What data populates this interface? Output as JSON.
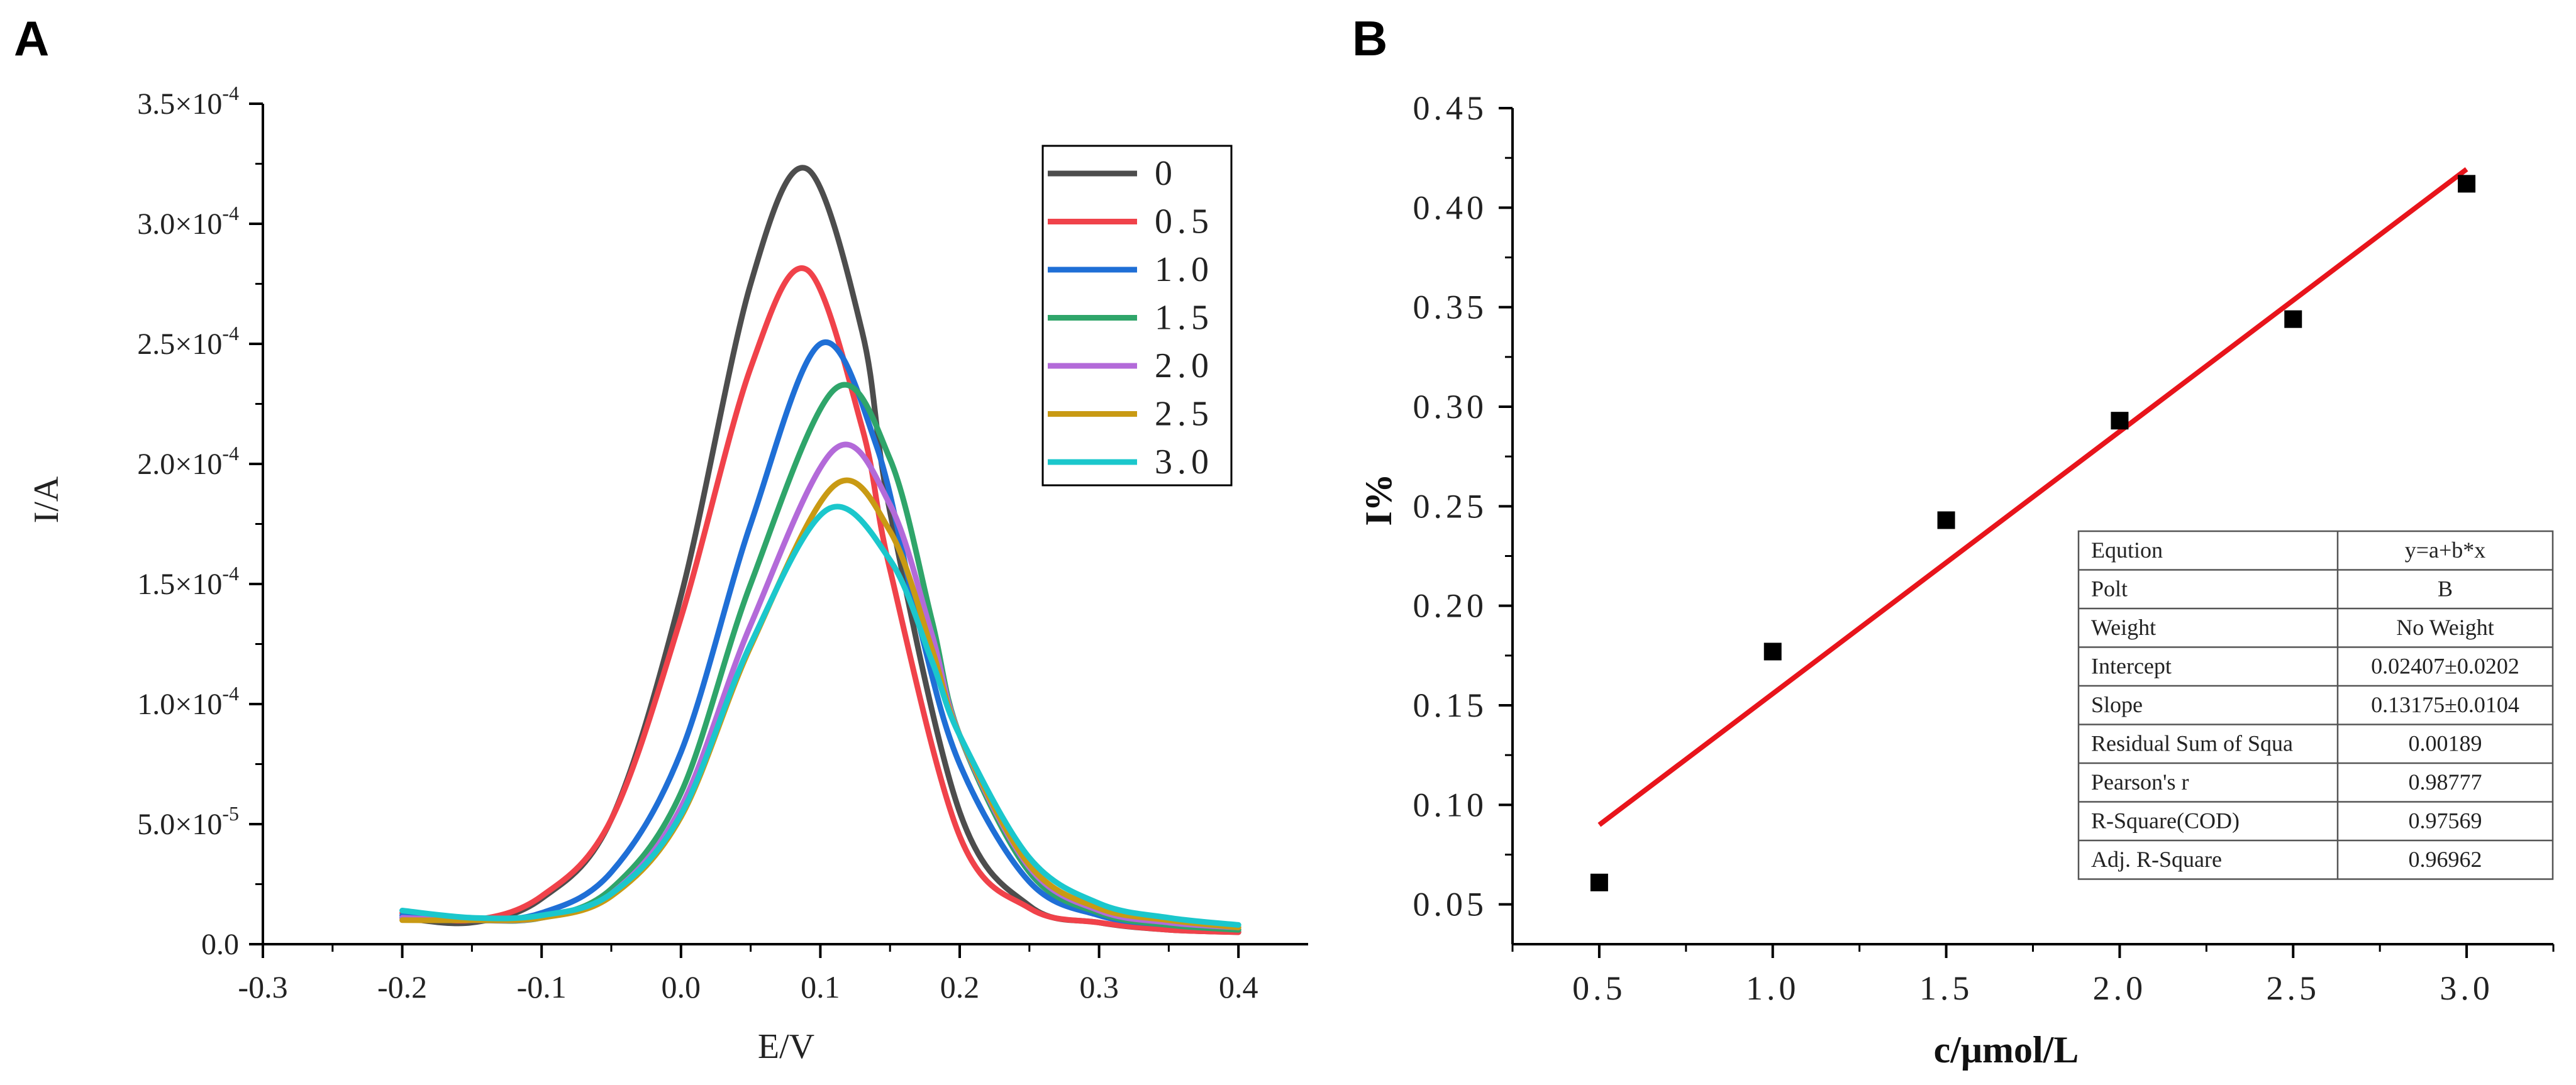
{
  "chart_data": [
    {
      "panel_label": "A",
      "type": "line",
      "xlabel": "E/V",
      "ylabel": "I/A",
      "xlim": [
        -0.3,
        0.45
      ],
      "ylim": [
        0,
        0.00035
      ],
      "x_ticks": [
        -0.3,
        -0.2,
        -0.1,
        0.0,
        0.1,
        0.2,
        0.3,
        0.4
      ],
      "x_tick_labels": [
        "-0.3",
        "-0.2",
        "-0.1",
        "0.0",
        "0.1",
        "0.2",
        "0.3",
        "0.4"
      ],
      "y_ticks": [
        0,
        5e-05,
        0.0001,
        0.00015,
        0.0002,
        0.00025,
        0.0003,
        0.00035
      ],
      "y_tick_labels": [
        {
          "mant": "0.0",
          "exp": ""
        },
        {
          "mant": "5.0×10",
          "exp": "-5"
        },
        {
          "mant": "1.0×10",
          "exp": "-4"
        },
        {
          "mant": "1.5×10",
          "exp": "-4"
        },
        {
          "mant": "2.0×10",
          "exp": "-4"
        },
        {
          "mant": "2.5×10",
          "exp": "-4"
        },
        {
          "mant": "3.0×10",
          "exp": "-4"
        },
        {
          "mant": "3.5×10",
          "exp": "-4"
        }
      ],
      "grid": false,
      "legend_position": "top-right",
      "series": [
        {
          "name": "0",
          "color": "#4d4d4d",
          "x": [
            -0.2,
            -0.15,
            -0.1,
            -0.05,
            0.0,
            0.05,
            0.09,
            0.13,
            0.15,
            0.2,
            0.25,
            0.3,
            0.35,
            0.4
          ],
          "y": [
            1.1e-05,
            9e-06,
            1.9e-05,
            5.2e-05,
            0.000145,
            0.000275,
            0.000323,
            0.000255,
            0.00018,
            5.5e-05,
            1.6e-05,
            9e-06,
            6e-06,
            5e-06
          ]
        },
        {
          "name": "0.5",
          "color": "#f0424a",
          "x": [
            -0.2,
            -0.15,
            -0.1,
            -0.05,
            0.0,
            0.05,
            0.09,
            0.13,
            0.15,
            0.2,
            0.25,
            0.3,
            0.35,
            0.4
          ],
          "y": [
            1.3e-05,
            1e-05,
            2e-05,
            5.2e-05,
            0.000136,
            0.00024,
            0.000281,
            0.000215,
            0.000156,
            4.5e-05,
            1.5e-05,
            9e-06,
            6e-06,
            5e-06
          ]
        },
        {
          "name": "1.0",
          "color": "#1f6fd6",
          "x": [
            -0.2,
            -0.15,
            -0.1,
            -0.05,
            0.0,
            0.05,
            0.1,
            0.14,
            0.17,
            0.2,
            0.25,
            0.3,
            0.35,
            0.4
          ],
          "y": [
            1.2e-05,
            1e-05,
            1.3e-05,
            3e-05,
            8e-05,
            0.000175,
            0.00025,
            0.000208,
            0.000135,
            7.5e-05,
            2.6e-05,
            1.2e-05,
            8e-06,
            6e-06
          ]
        },
        {
          "name": "1.5",
          "color": "#2fa56a",
          "x": [
            -0.2,
            -0.15,
            -0.1,
            -0.05,
            0.0,
            0.05,
            0.11,
            0.15,
            0.18,
            0.2,
            0.25,
            0.3,
            0.35,
            0.4
          ],
          "y": [
            1.1e-05,
            1e-05,
            1.1e-05,
            2.3e-05,
            6.3e-05,
            0.00015,
            0.000231,
            0.000202,
            0.000135,
            8.7e-05,
            3e-05,
            1.3e-05,
            8e-06,
            6e-06
          ]
        },
        {
          "name": "2.0",
          "color": "#b36ad9",
          "x": [
            -0.2,
            -0.15,
            -0.1,
            -0.05,
            0.0,
            0.05,
            0.11,
            0.15,
            0.18,
            0.2,
            0.25,
            0.3,
            0.35,
            0.4
          ],
          "y": [
            1.1e-05,
            1e-05,
            1.1e-05,
            2.1e-05,
            5.7e-05,
            0.000133,
            0.000206,
            0.000183,
            0.000129,
            8.7e-05,
            3.2e-05,
            1.4e-05,
            9e-06,
            7e-06
          ]
        },
        {
          "name": "2.5",
          "color": "#c99a13",
          "x": [
            -0.2,
            -0.15,
            -0.1,
            -0.05,
            0.0,
            0.05,
            0.11,
            0.15,
            0.18,
            0.2,
            0.25,
            0.3,
            0.35,
            0.4
          ],
          "y": [
            1e-05,
            1e-05,
            1.1e-05,
            2e-05,
            5.3e-05,
            0.000124,
            0.000191,
            0.000172,
            0.000123,
            8.7e-05,
            3.3e-05,
            1.5e-05,
            1e-05,
            7e-06
          ]
        },
        {
          "name": "3.0",
          "color": "#1bc7cc",
          "x": [
            -0.2,
            -0.15,
            -0.1,
            -0.05,
            0.0,
            0.05,
            0.105,
            0.15,
            0.18,
            0.2,
            0.25,
            0.3,
            0.35,
            0.4
          ],
          "y": [
            1.4e-05,
            1.1e-05,
            1.2e-05,
            2.1e-05,
            5.4e-05,
            0.000125,
            0.000181,
            0.00016,
            0.000118,
            8.7e-05,
            3.6e-05,
            1.7e-05,
            1.1e-05,
            8e-06
          ]
        }
      ]
    },
    {
      "panel_label": "B",
      "type": "scatter",
      "xlabel": "c/μmol/L",
      "ylabel": "I%",
      "xlim": [
        0.25,
        3.25
      ],
      "ylim": [
        0.03,
        0.45
      ],
      "x_ticks": [
        0.5,
        1.0,
        1.5,
        2.0,
        2.5,
        3.0
      ],
      "x_tick_labels": [
        "0.5",
        "1.0",
        "1.5",
        "2.0",
        "2.5",
        "3.0"
      ],
      "y_ticks": [
        0.05,
        0.1,
        0.15,
        0.2,
        0.25,
        0.3,
        0.35,
        0.4,
        0.45
      ],
      "y_tick_labels": [
        "0.05",
        "0.10",
        "0.15",
        "0.20",
        "0.25",
        "0.30",
        "0.35",
        "0.40",
        "0.45"
      ],
      "grid": false,
      "points": {
        "x": [
          0.5,
          1.0,
          1.5,
          2.0,
          2.5,
          3.0
        ],
        "y": [
          0.061,
          0.177,
          0.243,
          0.293,
          0.344,
          0.412
        ]
      },
      "fit": {
        "intercept": 0.02407,
        "slope": 0.13175,
        "x_range": [
          0.5,
          3.0
        ],
        "color": "#e8141b"
      },
      "stats_table": [
        [
          "Eqution",
          "y=a+b*x"
        ],
        [
          "Polt",
          "B"
        ],
        [
          "Weight",
          "No Weight"
        ],
        [
          "Intercept",
          "0.02407±0.0202"
        ],
        [
          "Slope",
          "0.13175±0.0104"
        ],
        [
          "Residual Sum of Squa",
          "0.00189"
        ],
        [
          "Pearson's r",
          "0.98777"
        ],
        [
          "R-Square(COD)",
          "0.97569"
        ],
        [
          "Adj. R-Square",
          "0.96962"
        ]
      ]
    }
  ]
}
